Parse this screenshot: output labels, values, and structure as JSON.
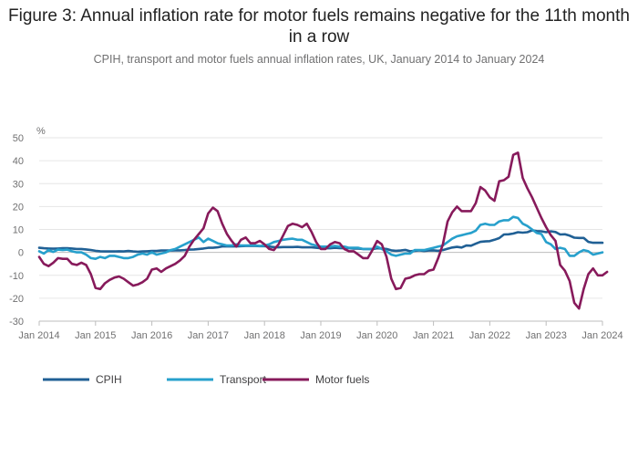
{
  "title": "Figure 3: Annual inflation rate for motor fuels remains negative for the 11th month in a row",
  "subtitle": "CPIH, transport and motor fuels annual inflation rates, UK, January 2014 to January 2024",
  "chart_data": {
    "type": "line",
    "ylabel": "%",
    "xlabel": "",
    "ylim": [
      -30,
      50
    ],
    "y_ticks": [
      "50",
      "40",
      "30",
      "20",
      "10",
      "0",
      "-10",
      "-20",
      "-30"
    ],
    "x_ticks": [
      "Jan 2014",
      "Jan 2015",
      "Jan 2016",
      "Jan 2017",
      "Jan 2018",
      "Jan 2019",
      "Jan 2020",
      "Jan 2021",
      "Jan 2022",
      "Jan 2023",
      "Jan 2024"
    ],
    "x_start": "Jan 2014",
    "x_end": "Jan 2024",
    "frequency": "monthly",
    "grid": true,
    "legend_position": "bottom",
    "series": [
      {
        "name": "CPIH",
        "color": "#206095",
        "values": [
          2.0,
          1.8,
          1.7,
          1.6,
          1.7,
          1.8,
          1.8,
          1.7,
          1.5,
          1.5,
          1.3,
          1.0,
          0.7,
          0.5,
          0.4,
          0.4,
          0.4,
          0.5,
          0.4,
          0.6,
          0.4,
          0.3,
          0.4,
          0.5,
          0.6,
          0.6,
          0.8,
          0.8,
          0.8,
          0.9,
          0.9,
          1.0,
          1.2,
          1.3,
          1.5,
          1.7,
          2.0,
          2.0,
          2.2,
          2.6,
          2.6,
          2.6,
          2.6,
          2.7,
          2.8,
          2.8,
          2.8,
          2.7,
          2.7,
          2.5,
          2.3,
          2.2,
          2.3,
          2.3,
          2.3,
          2.4,
          2.2,
          2.2,
          2.2,
          2.0,
          1.8,
          1.8,
          1.8,
          2.0,
          1.9,
          1.8,
          1.9,
          1.7,
          1.7,
          1.5,
          1.5,
          1.4,
          1.8,
          1.7,
          1.5,
          0.9,
          0.7,
          0.8,
          1.1,
          0.5,
          0.7,
          0.9,
          0.6,
          0.8,
          0.9,
          0.7,
          1.0,
          1.6,
          2.1,
          2.4,
          2.1,
          3.0,
          2.9,
          3.8,
          4.6,
          4.8,
          4.9,
          5.5,
          6.2,
          7.8,
          7.9,
          8.2,
          8.8,
          8.6,
          8.8,
          9.6,
          9.3,
          9.2,
          8.8,
          9.2,
          8.9,
          7.8,
          7.9,
          7.3,
          6.4,
          6.3,
          6.3,
          4.6,
          4.2,
          4.2,
          4.2
        ]
      },
      {
        "name": "Transport",
        "color": "#27a0cc",
        "values": [
          0.5,
          -0.5,
          1.0,
          0.2,
          1.2,
          1.0,
          1.2,
          0.5,
          0.0,
          0.0,
          -1.0,
          -2.5,
          -2.8,
          -2.0,
          -2.5,
          -1.5,
          -1.5,
          -2.0,
          -2.5,
          -2.5,
          -2.0,
          -1.0,
          -0.5,
          -1.0,
          0.0,
          -1.0,
          -0.5,
          0.0,
          1.0,
          1.5,
          2.5,
          3.5,
          4.5,
          5.5,
          6.5,
          4.5,
          6.0,
          5.0,
          4.0,
          3.5,
          3.0,
          3.0,
          3.5,
          3.0,
          3.0,
          3.0,
          3.0,
          2.8,
          3.0,
          3.5,
          4.5,
          5.0,
          5.5,
          5.8,
          6.0,
          5.5,
          5.5,
          4.5,
          3.5,
          3.0,
          2.5,
          2.5,
          2.5,
          2.8,
          2.5,
          2.5,
          2.0,
          2.0,
          2.0,
          1.5,
          1.5,
          1.5,
          2.5,
          1.5,
          0.5,
          -1.0,
          -1.5,
          -1.0,
          -0.5,
          -0.5,
          1.0,
          1.0,
          1.0,
          1.5,
          2.0,
          2.5,
          3.0,
          4.5,
          6.0,
          7.0,
          7.5,
          8.0,
          8.5,
          9.5,
          12.0,
          12.5,
          12.0,
          12.0,
          13.5,
          14.0,
          14.0,
          15.5,
          15.0,
          12.5,
          11.5,
          10.0,
          8.5,
          8.0,
          4.5,
          3.5,
          1.5,
          2.0,
          1.5,
          -1.5,
          -1.5,
          0.0,
          1.0,
          0.5,
          -1.0,
          -0.5,
          0.0
        ]
      },
      {
        "name": "Motor fuels",
        "color": "#871a5b",
        "values": [
          -2.0,
          -5.0,
          -6.0,
          -4.5,
          -2.5,
          -2.8,
          -2.8,
          -5.0,
          -5.5,
          -4.5,
          -5.5,
          -9.5,
          -15.5,
          -16.0,
          -13.5,
          -12.0,
          -11.0,
          -10.5,
          -11.5,
          -13.0,
          -14.5,
          -14.0,
          -13.0,
          -11.5,
          -7.5,
          -7.0,
          -8.5,
          -7.0,
          -6.0,
          -5.0,
          -3.5,
          -1.5,
          2.5,
          5.5,
          8.0,
          10.5,
          17.0,
          19.5,
          18.0,
          12.5,
          8.0,
          5.0,
          2.5,
          5.5,
          6.5,
          4.0,
          4.0,
          5.0,
          3.5,
          1.5,
          1.0,
          3.5,
          7.5,
          11.5,
          12.5,
          12.0,
          11.0,
          12.5,
          9.0,
          4.5,
          1.5,
          1.5,
          3.5,
          4.5,
          4.0,
          1.5,
          0.5,
          0.5,
          -1.0,
          -2.5,
          -2.5,
          1.0,
          5.0,
          3.5,
          -2.0,
          -11.5,
          -16.0,
          -15.5,
          -11.5,
          -11.0,
          -10.0,
          -9.5,
          -9.5,
          -8.0,
          -7.5,
          -2.5,
          3.5,
          13.5,
          17.5,
          20.0,
          18.0,
          18.0,
          18.0,
          21.5,
          28.5,
          27.0,
          24.0,
          22.5,
          31.0,
          31.5,
          33.0,
          42.5,
          43.5,
          32.5,
          28.0,
          24.0,
          19.5,
          15.0,
          11.0,
          7.5,
          5.0,
          -5.5,
          -8.0,
          -12.5,
          -22.0,
          -24.5,
          -16.0,
          -9.5,
          -7.0,
          -10.0,
          -10.0,
          -8.5
        ]
      }
    ]
  }
}
